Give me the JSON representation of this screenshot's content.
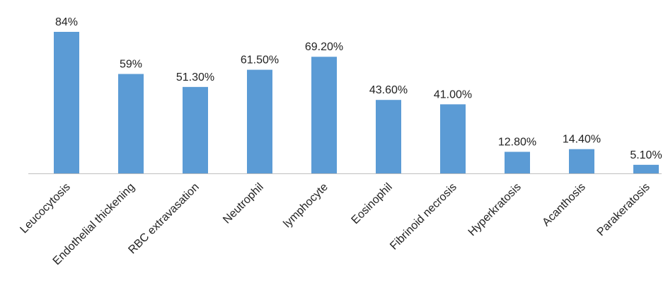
{
  "chart_data": {
    "type": "bar",
    "categories": [
      "Leucocytosis",
      "Endothelial thickening",
      "RBC extravasation",
      "Neutrophil",
      "lymphocyte",
      "Eosinophil",
      "Fibrinoid necrosis",
      "Hyperkratosis",
      "Acanthosis",
      "Parakeratosis"
    ],
    "values": [
      84,
      59,
      51.3,
      61.5,
      69.2,
      43.6,
      41.0,
      12.8,
      14.4,
      5.1
    ],
    "data_labels": [
      "84%",
      "59%",
      "51.30%",
      "61.50%",
      "69.20%",
      "43.60%",
      "41.00%",
      "12.80%",
      "14.40%",
      "5.10%"
    ],
    "title": "",
    "xlabel": "",
    "ylabel": "",
    "ylim": [
      0,
      84
    ],
    "grid": false,
    "legend": "none",
    "bar_color": "#5b9bd5",
    "axis_color": "#bfbfbf"
  }
}
